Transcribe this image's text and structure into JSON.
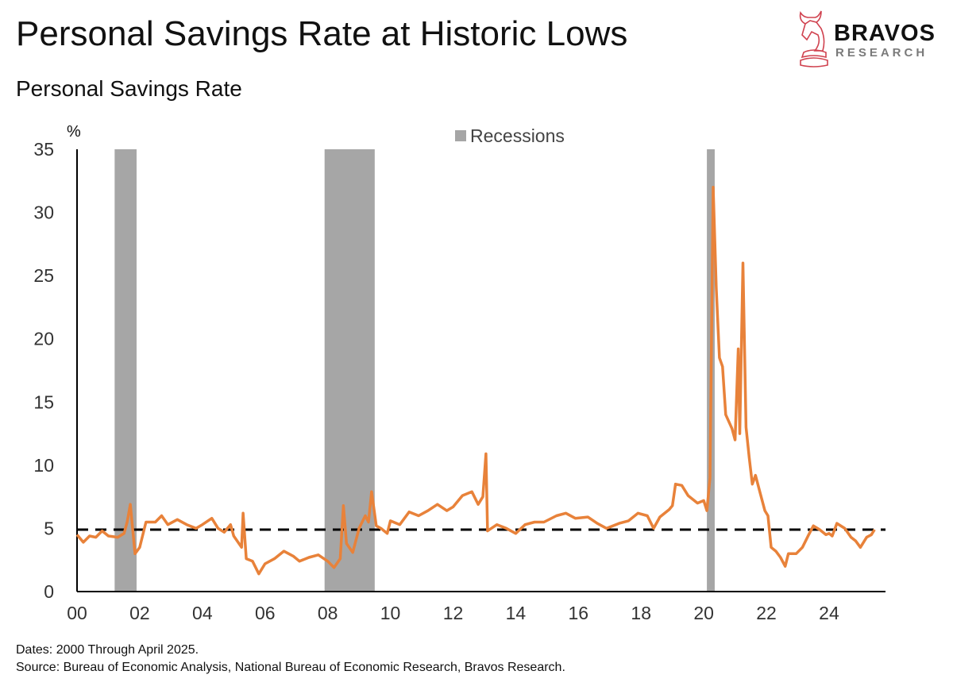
{
  "header": {
    "title": "Personal Savings Rate at Historic Lows",
    "subtitle": "Personal Savings Rate"
  },
  "logo": {
    "name": "BRAVOS",
    "sub": "RESEARCH",
    "icon": "bull-chess-knight-icon",
    "color": "#d0424f"
  },
  "footer": {
    "dates": "Dates: 2000 Through April 2025.",
    "source": "Source: Bureau of Economic Analysis, National Bureau of Economic Research, Bravos Research."
  },
  "chart_data": {
    "type": "line",
    "ylabel": "%",
    "ylim": [
      0,
      35
    ],
    "yticks": [
      0,
      5,
      10,
      15,
      20,
      25,
      30,
      35
    ],
    "xlim": [
      2000,
      2025.8
    ],
    "xticks": [
      {
        "v": 2000,
        "l": "00"
      },
      {
        "v": 2002,
        "l": "02"
      },
      {
        "v": 2004,
        "l": "04"
      },
      {
        "v": 2006,
        "l": "06"
      },
      {
        "v": 2008,
        "l": "08"
      },
      {
        "v": 2010,
        "l": "10"
      },
      {
        "v": 2012,
        "l": "12"
      },
      {
        "v": 2014,
        "l": "14"
      },
      {
        "v": 2016,
        "l": "16"
      },
      {
        "v": 2018,
        "l": "18"
      },
      {
        "v": 2020,
        "l": "20"
      },
      {
        "v": 2022,
        "l": "22"
      },
      {
        "v": 2024,
        "l": "24"
      }
    ],
    "grid": false,
    "legend": {
      "label": "Recessions",
      "placement": "top-center",
      "color": "#a6a6a6"
    },
    "recessions": [
      [
        2001.2,
        2001.9
      ],
      [
        2007.9,
        2009.5
      ],
      [
        2020.1,
        2020.35
      ]
    ],
    "reference_line": {
      "value": 4.9,
      "style": "dashed",
      "color": "#000000"
    },
    "series_color": "#e8823a",
    "x": [
      2000.0,
      2000.2,
      2000.4,
      2000.6,
      2000.8,
      2001.0,
      2001.3,
      2001.5,
      2001.6,
      2001.7,
      2001.85,
      2002.0,
      2002.2,
      2002.5,
      2002.7,
      2002.9,
      2003.2,
      2003.5,
      2003.8,
      2004.0,
      2004.3,
      2004.5,
      2004.7,
      2004.9,
      2005.0,
      2005.25,
      2005.3,
      2005.4,
      2005.6,
      2005.8,
      2006.0,
      2006.3,
      2006.6,
      2006.9,
      2007.1,
      2007.4,
      2007.7,
      2008.0,
      2008.2,
      2008.4,
      2008.5,
      2008.6,
      2008.8,
      2009.0,
      2009.2,
      2009.3,
      2009.4,
      2009.55,
      2009.7,
      2009.9,
      2010.0,
      2010.3,
      2010.6,
      2010.9,
      2011.2,
      2011.5,
      2011.8,
      2012.0,
      2012.3,
      2012.6,
      2012.8,
      2012.95,
      2013.05,
      2013.1,
      2013.4,
      2013.7,
      2014.0,
      2014.3,
      2014.6,
      2014.9,
      2015.3,
      2015.6,
      2015.9,
      2016.3,
      2016.6,
      2016.9,
      2017.3,
      2017.6,
      2017.9,
      2018.2,
      2018.4,
      2018.6,
      2018.9,
      2019.0,
      2019.1,
      2019.3,
      2019.5,
      2019.8,
      2020.0,
      2020.1,
      2020.2,
      2020.3,
      2020.4,
      2020.5,
      2020.6,
      2020.7,
      2020.9,
      2021.0,
      2021.1,
      2021.15,
      2021.25,
      2021.35,
      2021.45,
      2021.55,
      2021.65,
      2021.8,
      2021.95,
      2022.05,
      2022.15,
      2022.3,
      2022.45,
      2022.6,
      2022.7,
      2022.95,
      2023.15,
      2023.35,
      2023.5,
      2023.7,
      2023.9,
      2024.0,
      2024.1,
      2024.25,
      2024.5,
      2024.7,
      2024.85,
      2025.0,
      2025.2,
      2025.35,
      2025.45
    ],
    "values": [
      4.5,
      3.9,
      4.4,
      4.3,
      4.8,
      4.4,
      4.3,
      4.6,
      5.5,
      6.9,
      3.0,
      3.5,
      5.5,
      5.5,
      6.0,
      5.3,
      5.7,
      5.3,
      5.0,
      5.3,
      5.8,
      5.0,
      4.7,
      5.3,
      4.4,
      3.5,
      6.2,
      2.6,
      2.4,
      1.4,
      2.2,
      2.6,
      3.2,
      2.8,
      2.4,
      2.7,
      2.9,
      2.4,
      1.9,
      2.6,
      6.8,
      3.8,
      3.1,
      5.0,
      6.0,
      5.5,
      7.9,
      5.2,
      5.0,
      4.6,
      5.6,
      5.3,
      6.3,
      6.0,
      6.4,
      6.9,
      6.4,
      6.7,
      7.6,
      7.9,
      6.9,
      7.5,
      10.9,
      4.8,
      5.3,
      5.0,
      4.6,
      5.3,
      5.5,
      5.5,
      6.0,
      6.2,
      5.8,
      5.9,
      5.4,
      5.0,
      5.4,
      5.6,
      6.2,
      6.0,
      5.0,
      5.9,
      6.5,
      6.8,
      8.5,
      8.4,
      7.6,
      7.0,
      7.2,
      6.4,
      9.0,
      32.0,
      24.0,
      18.5,
      17.8,
      14.0,
      12.9,
      12.0,
      19.2,
      12.5,
      26.0,
      13.0,
      10.6,
      8.5,
      9.2,
      7.8,
      6.4,
      6.0,
      3.5,
      3.2,
      2.7,
      2.0,
      3.0,
      3.0,
      3.5,
      4.5,
      5.2,
      4.9,
      4.5,
      4.6,
      4.4,
      5.4,
      5.0,
      4.3,
      4.0,
      3.5,
      4.3,
      4.5,
      4.9
    ]
  }
}
